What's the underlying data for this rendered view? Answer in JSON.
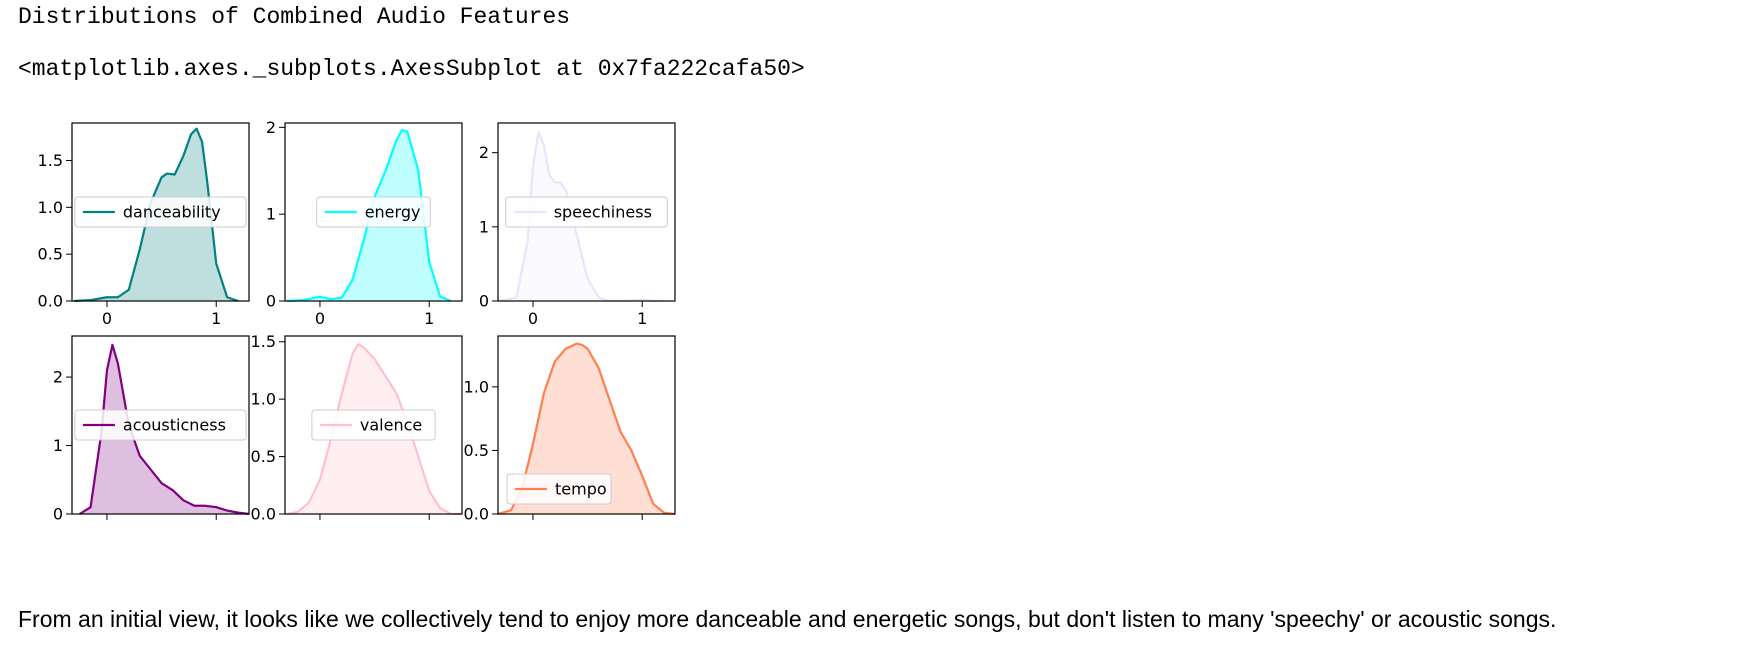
{
  "notebook": {
    "heading": "Distributions of Combined Audio Features",
    "repr_output": "<matplotlib.axes._subplots.AxesSubplot at 0x7fa222cafa50>",
    "prose": "From an initial view, it looks like we collectively tend to enjoy more danceable and energetic songs, but don't listen to many 'speechy' or acoustic songs."
  },
  "chart_data": [
    {
      "type": "area",
      "series": [
        {
          "name": "danceability",
          "color": "#008080"
        }
      ],
      "x": [
        -0.3,
        -0.15,
        0.0,
        0.1,
        0.2,
        0.3,
        0.4,
        0.5,
        0.55,
        0.62,
        0.7,
        0.77,
        0.82,
        0.87,
        0.92,
        1.0,
        1.1,
        1.2
      ],
      "y": [
        0.0,
        0.01,
        0.04,
        0.04,
        0.12,
        0.55,
        1.05,
        1.32,
        1.36,
        1.35,
        1.55,
        1.78,
        1.84,
        1.7,
        1.25,
        0.4,
        0.04,
        0.0
      ],
      "xlim": [
        -0.32,
        1.3
      ],
      "ylim": [
        0,
        1.9
      ],
      "xticks": [
        "0",
        "1"
      ],
      "yticks": [
        "0.0",
        "0.5",
        "1.0",
        "1.5"
      ],
      "ytick_values": [
        0,
        0.5,
        1.0,
        1.5
      ],
      "legend": "center"
    },
    {
      "type": "area",
      "series": [
        {
          "name": "energy",
          "color": "#00ffff"
        }
      ],
      "x": [
        -0.3,
        -0.15,
        0.0,
        0.1,
        0.2,
        0.3,
        0.4,
        0.5,
        0.6,
        0.7,
        0.75,
        0.8,
        0.9,
        1.0,
        1.1,
        1.2
      ],
      "y": [
        0.0,
        0.01,
        0.05,
        0.02,
        0.04,
        0.25,
        0.7,
        1.2,
        1.5,
        1.85,
        1.97,
        1.95,
        1.5,
        0.45,
        0.05,
        0.0
      ],
      "xlim": [
        -0.32,
        1.3
      ],
      "ylim": [
        0,
        2.05
      ],
      "xticks": [
        "0",
        "1"
      ],
      "yticks": [
        "0",
        "1",
        "2"
      ],
      "ytick_values": [
        0,
        1,
        2
      ],
      "legend": "center"
    },
    {
      "type": "area",
      "series": [
        {
          "name": "speechiness",
          "color": "#e6e6fa"
        }
      ],
      "x": [
        -0.3,
        -0.15,
        -0.05,
        0.0,
        0.05,
        0.1,
        0.15,
        0.2,
        0.25,
        0.3,
        0.4,
        0.5,
        0.6,
        0.7,
        0.8,
        0.9,
        1.0,
        1.1,
        1.2
      ],
      "y": [
        0.0,
        0.05,
        0.8,
        1.8,
        2.28,
        2.1,
        1.7,
        1.6,
        1.6,
        1.5,
        0.9,
        0.3,
        0.05,
        0.0,
        0.0,
        0.01,
        0.02,
        0.0,
        0.0
      ],
      "xlim": [
        -0.32,
        1.3
      ],
      "ylim": [
        0,
        2.4
      ],
      "xticks": [
        "0",
        "1"
      ],
      "yticks": [
        "0",
        "1",
        "2"
      ],
      "ytick_values": [
        0,
        1,
        2
      ],
      "legend": "center"
    },
    {
      "type": "area",
      "series": [
        {
          "name": "acousticness",
          "color": "#800080"
        }
      ],
      "x": [
        -0.25,
        -0.15,
        -0.05,
        0.0,
        0.05,
        0.1,
        0.2,
        0.3,
        0.4,
        0.5,
        0.6,
        0.7,
        0.8,
        0.9,
        1.0,
        1.1,
        1.2,
        1.3
      ],
      "y": [
        0.0,
        0.1,
        1.2,
        2.1,
        2.47,
        2.2,
        1.3,
        0.85,
        0.65,
        0.45,
        0.35,
        0.2,
        0.12,
        0.12,
        0.1,
        0.05,
        0.02,
        0.0
      ],
      "xlim": [
        -0.32,
        1.3
      ],
      "ylim": [
        0,
        2.6
      ],
      "xticks": [
        "0",
        "1"
      ],
      "yticks": [
        "0",
        "1",
        "2"
      ],
      "ytick_values": [
        0,
        1,
        2
      ],
      "legend": "center"
    },
    {
      "type": "area",
      "series": [
        {
          "name": "valence",
          "color": "#ffc0cb"
        }
      ],
      "x": [
        -0.3,
        -0.2,
        -0.1,
        0.0,
        0.1,
        0.2,
        0.3,
        0.35,
        0.4,
        0.45,
        0.5,
        0.6,
        0.7,
        0.8,
        0.9,
        1.0,
        1.1,
        1.2,
        1.3
      ],
      "y": [
        0.0,
        0.02,
        0.1,
        0.3,
        0.65,
        1.05,
        1.4,
        1.48,
        1.45,
        1.4,
        1.35,
        1.2,
        1.05,
        0.8,
        0.5,
        0.2,
        0.05,
        0.0,
        0.0
      ],
      "xlim": [
        -0.32,
        1.3
      ],
      "ylim": [
        0,
        1.55
      ],
      "xticks": [
        "0",
        "1"
      ],
      "yticks": [
        "0.0",
        "0.5",
        "1.0",
        "1.5"
      ],
      "ytick_values": [
        0,
        0.5,
        1.0,
        1.5
      ],
      "legend": "center"
    },
    {
      "type": "area",
      "series": [
        {
          "name": "tempo",
          "color": "#ff7f50"
        }
      ],
      "x": [
        -0.32,
        -0.2,
        -0.1,
        0.0,
        0.1,
        0.2,
        0.3,
        0.4,
        0.45,
        0.5,
        0.6,
        0.7,
        0.8,
        0.9,
        1.0,
        1.1,
        1.2,
        1.3
      ],
      "y": [
        0.0,
        0.03,
        0.2,
        0.55,
        0.95,
        1.2,
        1.3,
        1.34,
        1.33,
        1.3,
        1.15,
        0.9,
        0.65,
        0.5,
        0.3,
        0.08,
        0.01,
        0.0
      ],
      "xlim": [
        -0.32,
        1.3
      ],
      "ylim": [
        0,
        1.4
      ],
      "xticks": [
        "0",
        "1"
      ],
      "yticks": [
        "0.0",
        "0.5",
        "1.0"
      ],
      "ytick_values": [
        0,
        0.5,
        1.0
      ],
      "legend": "lower left"
    }
  ]
}
